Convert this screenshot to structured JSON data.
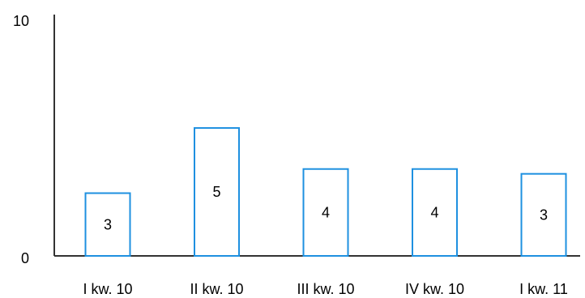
{
  "chart_data": {
    "type": "bar",
    "categories": [
      "I kw. 10",
      "II kw. 10",
      "III kw. 10",
      "IV kw. 10",
      "I kw. 11"
    ],
    "values": [
      2.6,
      5.3,
      3.6,
      3.6,
      3.4
    ],
    "data_labels": [
      "3",
      "5",
      "4",
      "4",
      "3"
    ],
    "ylim": [
      0,
      10
    ],
    "y_ticks": [
      "0",
      "10"
    ],
    "grid": false,
    "legend": "none",
    "bar_color": "#1e90e0",
    "axis_color": "#333333"
  }
}
